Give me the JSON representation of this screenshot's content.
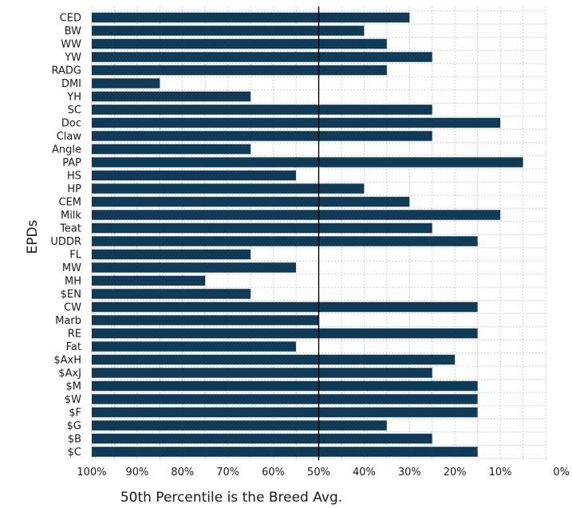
{
  "chart_data": {
    "type": "bar",
    "orientation": "horizontal",
    "title": "",
    "ylabel": "EPDs",
    "xlabel": "50th Percentile is the Breed Avg.",
    "xlim": [
      100,
      0
    ],
    "reference_line": 50,
    "x_ticks": [
      "100%",
      "90%",
      "80%",
      "70%",
      "60%",
      "50%",
      "40%",
      "30%",
      "20%",
      "10%",
      "0%"
    ],
    "x_tick_values": [
      100,
      90,
      80,
      70,
      60,
      50,
      40,
      30,
      20,
      10,
      0
    ],
    "bar_color": "#103a55",
    "categories": [
      "CED",
      "BW",
      "WW",
      "YW",
      "RADG",
      "DMI",
      "YH",
      "SC",
      "Doc",
      "Claw",
      "Angle",
      "PAP",
      "HS",
      "HP",
      "CEM",
      "Milk",
      "Teat",
      "UDDR",
      "FL",
      "MW",
      "MH",
      "$EN",
      "CW",
      "Marb",
      "RE",
      "Fat",
      "$AxH",
      "$AxJ",
      "$M",
      "$W",
      "$F",
      "$G",
      "$B",
      "$C"
    ],
    "values": [
      30,
      40,
      35,
      25,
      35,
      85,
      65,
      25,
      10,
      25,
      65,
      5,
      55,
      40,
      30,
      10,
      25,
      15,
      65,
      55,
      75,
      65,
      15,
      50,
      15,
      55,
      20,
      25,
      15,
      15,
      15,
      35,
      25,
      15
    ]
  }
}
